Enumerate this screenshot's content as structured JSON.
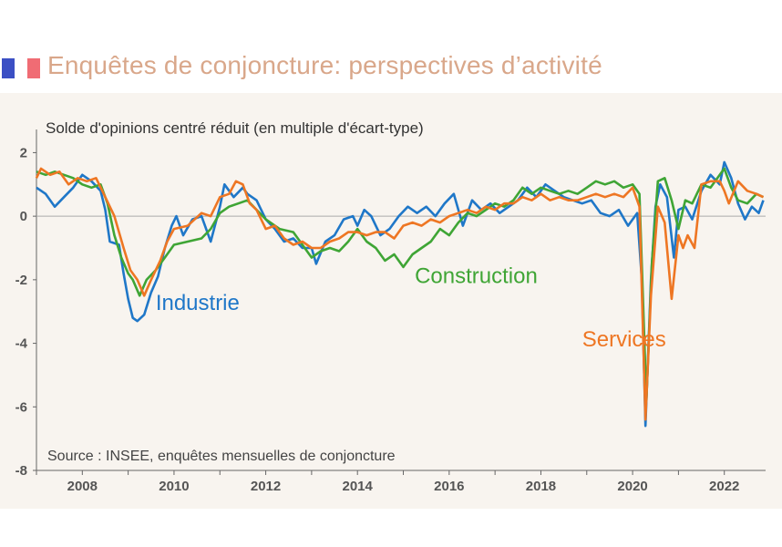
{
  "header": {
    "title": "Enquêtes de conjoncture: perspectives d’activité"
  },
  "chart_data": {
    "type": "line",
    "title": "Enquêtes de conjoncture: perspectives d’activité",
    "ylabel": "Solde d'opinions centré réduit (en multiple d'écart-type)",
    "xlabel": "",
    "source": "Source : INSEE, enquêtes mensuelles de conjoncture",
    "xlim": [
      2007.0,
      2022.9
    ],
    "ylim": [
      -8,
      2.5
    ],
    "x_ticks": [
      2008,
      2010,
      2012,
      2014,
      2016,
      2018,
      2020,
      2022
    ],
    "x_tick_labels": [
      "2008",
      "2010",
      "2012",
      "2014",
      "2016",
      "2018",
      "2020",
      "2022"
    ],
    "y_ticks": [
      2,
      0,
      -2,
      -4,
      -6,
      -8
    ],
    "y_tick_labels": [
      "2",
      "0",
      "-2",
      "-4",
      "-6",
      "-8"
    ],
    "grid": false,
    "legend": "inline labels",
    "series": [
      {
        "name": "Industrie",
        "color": "#1f77c8",
        "points": [
          [
            2007.0,
            0.9
          ],
          [
            2007.2,
            0.7
          ],
          [
            2007.4,
            0.3
          ],
          [
            2007.6,
            0.6
          ],
          [
            2007.8,
            0.9
          ],
          [
            2008.0,
            1.3
          ],
          [
            2008.2,
            1.1
          ],
          [
            2008.4,
            0.8
          ],
          [
            2008.5,
            0.2
          ],
          [
            2008.6,
            -0.8
          ],
          [
            2008.8,
            -0.9
          ],
          [
            2008.9,
            -1.8
          ],
          [
            2009.0,
            -2.6
          ],
          [
            2009.1,
            -3.2
          ],
          [
            2009.2,
            -3.3
          ],
          [
            2009.35,
            -3.1
          ],
          [
            2009.5,
            -2.4
          ],
          [
            2009.65,
            -1.9
          ],
          [
            2009.8,
            -1.0
          ],
          [
            2009.95,
            -0.3
          ],
          [
            2010.05,
            0.0
          ],
          [
            2010.2,
            -0.6
          ],
          [
            2010.4,
            -0.1
          ],
          [
            2010.6,
            0.0
          ],
          [
            2010.8,
            -0.8
          ],
          [
            2011.0,
            0.3
          ],
          [
            2011.1,
            1.0
          ],
          [
            2011.3,
            0.6
          ],
          [
            2011.5,
            0.9
          ],
          [
            2011.6,
            0.7
          ],
          [
            2011.8,
            0.5
          ],
          [
            2012.0,
            -0.1
          ],
          [
            2012.2,
            -0.4
          ],
          [
            2012.4,
            -0.8
          ],
          [
            2012.6,
            -0.7
          ],
          [
            2012.8,
            -1.0
          ],
          [
            2013.0,
            -1.0
          ],
          [
            2013.1,
            -1.5
          ],
          [
            2013.3,
            -0.8
          ],
          [
            2013.5,
            -0.6
          ],
          [
            2013.7,
            -0.1
          ],
          [
            2013.9,
            0.0
          ],
          [
            2014.0,
            -0.3
          ],
          [
            2014.15,
            0.2
          ],
          [
            2014.3,
            0.0
          ],
          [
            2014.5,
            -0.6
          ],
          [
            2014.7,
            -0.4
          ],
          [
            2014.9,
            0.0
          ],
          [
            2015.1,
            0.3
          ],
          [
            2015.3,
            0.1
          ],
          [
            2015.5,
            0.3
          ],
          [
            2015.7,
            0.0
          ],
          [
            2015.9,
            0.4
          ],
          [
            2016.1,
            0.7
          ],
          [
            2016.3,
            -0.3
          ],
          [
            2016.5,
            0.5
          ],
          [
            2016.7,
            0.2
          ],
          [
            2016.9,
            0.4
          ],
          [
            2017.1,
            0.1
          ],
          [
            2017.3,
            0.3
          ],
          [
            2017.5,
            0.5
          ],
          [
            2017.7,
            0.9
          ],
          [
            2017.9,
            0.6
          ],
          [
            2018.1,
            1.0
          ],
          [
            2018.3,
            0.8
          ],
          [
            2018.5,
            0.6
          ],
          [
            2018.7,
            0.5
          ],
          [
            2018.9,
            0.4
          ],
          [
            2019.1,
            0.5
          ],
          [
            2019.3,
            0.1
          ],
          [
            2019.5,
            0.0
          ],
          [
            2019.7,
            0.2
          ],
          [
            2019.9,
            -0.3
          ],
          [
            2020.1,
            0.1
          ],
          [
            2020.2,
            -2.0
          ],
          [
            2020.28,
            -6.6
          ],
          [
            2020.4,
            -2.0
          ],
          [
            2020.5,
            0.3
          ],
          [
            2020.6,
            1.0
          ],
          [
            2020.75,
            0.6
          ],
          [
            2020.9,
            -1.3
          ],
          [
            2021.0,
            0.2
          ],
          [
            2021.15,
            0.3
          ],
          [
            2021.3,
            -0.1
          ],
          [
            2021.5,
            0.8
          ],
          [
            2021.7,
            1.3
          ],
          [
            2021.9,
            1.0
          ],
          [
            2022.0,
            1.7
          ],
          [
            2022.15,
            1.2
          ],
          [
            2022.3,
            0.4
          ],
          [
            2022.45,
            -0.1
          ],
          [
            2022.6,
            0.3
          ],
          [
            2022.75,
            0.1
          ],
          [
            2022.85,
            0.5
          ]
        ]
      },
      {
        "name": "Construction",
        "color": "#3fa535",
        "points": [
          [
            2007.0,
            1.4
          ],
          [
            2007.2,
            1.3
          ],
          [
            2007.4,
            1.4
          ],
          [
            2007.6,
            1.3
          ],
          [
            2007.8,
            1.2
          ],
          [
            2008.0,
            1.0
          ],
          [
            2008.2,
            0.9
          ],
          [
            2008.4,
            1.0
          ],
          [
            2008.55,
            0.4
          ],
          [
            2008.7,
            -0.6
          ],
          [
            2008.85,
            -1.3
          ],
          [
            2009.0,
            -1.8
          ],
          [
            2009.1,
            -2.0
          ],
          [
            2009.25,
            -2.5
          ],
          [
            2009.4,
            -2.0
          ],
          [
            2009.6,
            -1.7
          ],
          [
            2009.8,
            -1.3
          ],
          [
            2010.0,
            -0.9
          ],
          [
            2010.3,
            -0.8
          ],
          [
            2010.6,
            -0.7
          ],
          [
            2010.8,
            -0.4
          ],
          [
            2011.0,
            0.1
          ],
          [
            2011.2,
            0.3
          ],
          [
            2011.4,
            0.4
          ],
          [
            2011.6,
            0.5
          ],
          [
            2011.8,
            0.2
          ],
          [
            2012.0,
            -0.1
          ],
          [
            2012.3,
            -0.4
          ],
          [
            2012.6,
            -0.5
          ],
          [
            2012.8,
            -0.9
          ],
          [
            2013.0,
            -1.3
          ],
          [
            2013.2,
            -1.1
          ],
          [
            2013.4,
            -1.0
          ],
          [
            2013.6,
            -1.1
          ],
          [
            2013.8,
            -0.8
          ],
          [
            2014.0,
            -0.4
          ],
          [
            2014.2,
            -0.8
          ],
          [
            2014.4,
            -1.0
          ],
          [
            2014.6,
            -1.4
          ],
          [
            2014.8,
            -1.2
          ],
          [
            2015.0,
            -1.6
          ],
          [
            2015.2,
            -1.2
          ],
          [
            2015.4,
            -1.0
          ],
          [
            2015.6,
            -0.8
          ],
          [
            2015.8,
            -0.4
          ],
          [
            2016.0,
            -0.6
          ],
          [
            2016.2,
            -0.2
          ],
          [
            2016.4,
            0.1
          ],
          [
            2016.6,
            0.0
          ],
          [
            2016.8,
            0.2
          ],
          [
            2017.0,
            0.4
          ],
          [
            2017.2,
            0.3
          ],
          [
            2017.4,
            0.5
          ],
          [
            2017.6,
            0.9
          ],
          [
            2017.8,
            0.7
          ],
          [
            2018.0,
            0.9
          ],
          [
            2018.2,
            0.8
          ],
          [
            2018.4,
            0.7
          ],
          [
            2018.6,
            0.8
          ],
          [
            2018.8,
            0.7
          ],
          [
            2019.0,
            0.9
          ],
          [
            2019.2,
            1.1
          ],
          [
            2019.4,
            1.0
          ],
          [
            2019.6,
            1.1
          ],
          [
            2019.8,
            0.9
          ],
          [
            2020.0,
            1.0
          ],
          [
            2020.15,
            0.7
          ],
          [
            2020.3,
            -5.8
          ],
          [
            2020.42,
            -1.5
          ],
          [
            2020.55,
            1.1
          ],
          [
            2020.7,
            1.2
          ],
          [
            2020.85,
            0.5
          ],
          [
            2021.0,
            -0.4
          ],
          [
            2021.15,
            0.5
          ],
          [
            2021.3,
            0.4
          ],
          [
            2021.5,
            1.0
          ],
          [
            2021.7,
            0.9
          ],
          [
            2021.9,
            1.3
          ],
          [
            2022.0,
            1.5
          ],
          [
            2022.15,
            0.9
          ],
          [
            2022.3,
            0.5
          ],
          [
            2022.5,
            0.4
          ],
          [
            2022.7,
            0.7
          ],
          [
            2022.85,
            0.6
          ]
        ]
      },
      {
        "name": "Services",
        "color": "#ee7623",
        "points": [
          [
            2007.0,
            1.2
          ],
          [
            2007.1,
            1.5
          ],
          [
            2007.3,
            1.3
          ],
          [
            2007.5,
            1.4
          ],
          [
            2007.7,
            1.0
          ],
          [
            2007.9,
            1.2
          ],
          [
            2008.1,
            1.1
          ],
          [
            2008.3,
            1.2
          ],
          [
            2008.5,
            0.6
          ],
          [
            2008.7,
            0.0
          ],
          [
            2008.9,
            -1.0
          ],
          [
            2009.05,
            -1.7
          ],
          [
            2009.2,
            -2.0
          ],
          [
            2009.35,
            -2.5
          ],
          [
            2009.5,
            -2.0
          ],
          [
            2009.7,
            -1.4
          ],
          [
            2009.85,
            -0.8
          ],
          [
            2010.0,
            -0.4
          ],
          [
            2010.3,
            -0.3
          ],
          [
            2010.6,
            0.1
          ],
          [
            2010.8,
            0.0
          ],
          [
            2011.0,
            0.6
          ],
          [
            2011.2,
            0.7
          ],
          [
            2011.35,
            1.1
          ],
          [
            2011.5,
            1.0
          ],
          [
            2011.65,
            0.4
          ],
          [
            2011.8,
            0.2
          ],
          [
            2012.0,
            -0.4
          ],
          [
            2012.2,
            -0.3
          ],
          [
            2012.4,
            -0.7
          ],
          [
            2012.6,
            -0.9
          ],
          [
            2012.8,
            -0.8
          ],
          [
            2013.0,
            -1.0
          ],
          [
            2013.2,
            -1.0
          ],
          [
            2013.4,
            -0.8
          ],
          [
            2013.6,
            -0.7
          ],
          [
            2013.8,
            -0.5
          ],
          [
            2014.0,
            -0.5
          ],
          [
            2014.2,
            -0.6
          ],
          [
            2014.4,
            -0.5
          ],
          [
            2014.6,
            -0.5
          ],
          [
            2014.8,
            -0.7
          ],
          [
            2015.0,
            -0.3
          ],
          [
            2015.2,
            -0.2
          ],
          [
            2015.4,
            -0.3
          ],
          [
            2015.6,
            -0.1
          ],
          [
            2015.8,
            -0.2
          ],
          [
            2016.0,
            0.0
          ],
          [
            2016.2,
            0.1
          ],
          [
            2016.4,
            0.2
          ],
          [
            2016.6,
            0.1
          ],
          [
            2016.8,
            0.3
          ],
          [
            2017.0,
            0.2
          ],
          [
            2017.2,
            0.4
          ],
          [
            2017.4,
            0.4
          ],
          [
            2017.6,
            0.6
          ],
          [
            2017.8,
            0.5
          ],
          [
            2018.0,
            0.7
          ],
          [
            2018.2,
            0.5
          ],
          [
            2018.4,
            0.6
          ],
          [
            2018.6,
            0.5
          ],
          [
            2018.8,
            0.5
          ],
          [
            2019.0,
            0.6
          ],
          [
            2019.2,
            0.7
          ],
          [
            2019.4,
            0.6
          ],
          [
            2019.6,
            0.7
          ],
          [
            2019.8,
            0.6
          ],
          [
            2020.0,
            0.9
          ],
          [
            2020.15,
            0.3
          ],
          [
            2020.28,
            -6.4
          ],
          [
            2020.4,
            -2.5
          ],
          [
            2020.55,
            0.3
          ],
          [
            2020.7,
            -0.2
          ],
          [
            2020.85,
            -2.6
          ],
          [
            2021.0,
            -0.6
          ],
          [
            2021.1,
            -1.0
          ],
          [
            2021.2,
            -0.6
          ],
          [
            2021.35,
            -1.0
          ],
          [
            2021.5,
            1.0
          ],
          [
            2021.7,
            1.1
          ],
          [
            2021.9,
            1.1
          ],
          [
            2022.0,
            0.8
          ],
          [
            2022.1,
            0.4
          ],
          [
            2022.3,
            1.1
          ],
          [
            2022.5,
            0.8
          ],
          [
            2022.7,
            0.7
          ],
          [
            2022.85,
            0.6
          ]
        ]
      }
    ],
    "annotations": [
      {
        "text": "Industrie",
        "series": "Industrie",
        "x": 2009.6,
        "y": -2.95
      },
      {
        "text": "Construction",
        "series": "Construction",
        "x": 2015.25,
        "y": -2.1
      },
      {
        "text": "Services",
        "series": "Services",
        "x": 2018.9,
        "y": -4.1
      }
    ]
  }
}
